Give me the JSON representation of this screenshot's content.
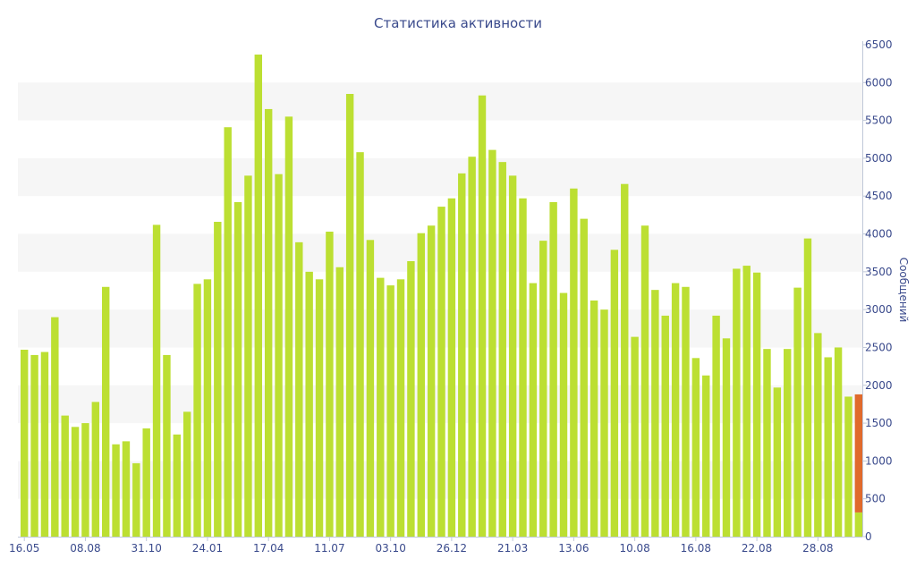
{
  "chart_data": {
    "type": "bar",
    "title": "Статистика активности",
    "ylabel": "Сообщений",
    "xlabel": "",
    "ylim": [
      0,
      6500
    ],
    "y_ticks": [
      0,
      500,
      1000,
      1500,
      2000,
      2500,
      3000,
      3500,
      4000,
      4500,
      5000,
      5500,
      6000,
      6500
    ],
    "y_axis_side": "right",
    "grid": "alternating horizontal bands",
    "x_tick_labels": [
      {
        "index": 0,
        "label": "16.05"
      },
      {
        "index": 6,
        "label": "08.08"
      },
      {
        "index": 12,
        "label": "31.10"
      },
      {
        "index": 18,
        "label": "24.01"
      },
      {
        "index": 24,
        "label": "17.04"
      },
      {
        "index": 30,
        "label": "11.07"
      },
      {
        "index": 36,
        "label": "03.10"
      },
      {
        "index": 42,
        "label": "26.12"
      },
      {
        "index": 48,
        "label": "21.03"
      },
      {
        "index": 54,
        "label": "13.06"
      },
      {
        "index": 60,
        "label": "10.08"
      },
      {
        "index": 66,
        "label": "16.08"
      },
      {
        "index": 72,
        "label": "22.08"
      },
      {
        "index": 78,
        "label": "28.08"
      }
    ],
    "series": [
      {
        "color": "#bcdf32",
        "values": [
          2470,
          2400,
          2440,
          2900,
          1600,
          1450,
          1500,
          1780,
          3300,
          1220,
          1260,
          970,
          1430,
          4120,
          2400,
          1350,
          1650,
          3340,
          3400,
          4160,
          5410,
          4420,
          4770,
          6370,
          5650,
          4790,
          5550,
          3890,
          3500,
          3400,
          4030,
          3560,
          5850,
          5080,
          3920,
          3420,
          3320,
          3400,
          3640,
          4010,
          4110,
          4360,
          4470,
          4800,
          5020,
          5830,
          5110,
          4950,
          4770,
          4470,
          3350,
          3910,
          4420,
          3220,
          4600,
          4200,
          3120,
          3000,
          3790,
          4660,
          2640,
          4110,
          3260,
          2920,
          3350,
          3300,
          2360,
          2130,
          2920,
          2620,
          3540,
          3580,
          3490,
          2480,
          1970,
          2480,
          3290,
          3940,
          2690,
          2370,
          2500,
          1850,
          320
        ]
      },
      {
        "color": "#e06a2c",
        "values": [
          0,
          0,
          0,
          0,
          0,
          0,
          0,
          0,
          0,
          0,
          0,
          0,
          0,
          0,
          0,
          0,
          0,
          0,
          0,
          0,
          0,
          0,
          0,
          0,
          0,
          0,
          0,
          0,
          0,
          0,
          0,
          0,
          0,
          0,
          0,
          0,
          0,
          0,
          0,
          0,
          0,
          0,
          0,
          0,
          0,
          0,
          0,
          0,
          0,
          0,
          0,
          0,
          0,
          0,
          0,
          0,
          0,
          0,
          0,
          0,
          0,
          0,
          0,
          0,
          0,
          0,
          0,
          0,
          0,
          0,
          0,
          0,
          0,
          0,
          0,
          0,
          0,
          0,
          0,
          0,
          0,
          0,
          1560
        ]
      }
    ],
    "stacked": true
  }
}
